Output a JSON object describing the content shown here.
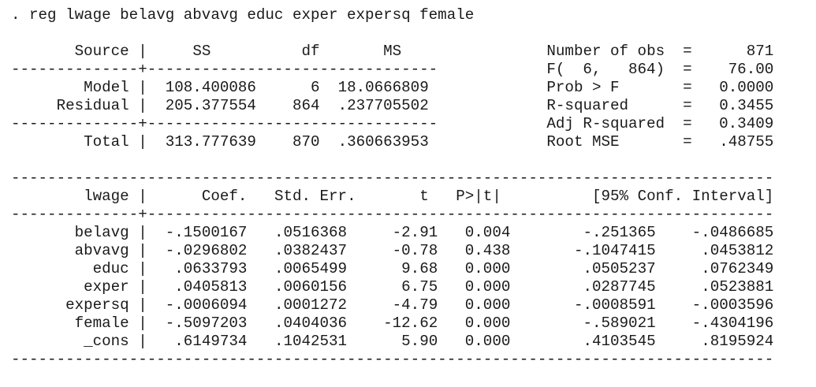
{
  "command": ". reg lwage belavg abvavg educ exper expersq female",
  "anova": {
    "headers": {
      "source": "Source",
      "ss": "SS",
      "df": "df",
      "ms": "MS"
    },
    "rows": [
      {
        "source": "Model",
        "ss": "108.400086",
        "df": "6",
        "ms": "18.0666809"
      },
      {
        "source": "Residual",
        "ss": "205.377554",
        "df": "864",
        "ms": ".237705502"
      },
      {
        "source": "Total",
        "ss": "313.777639",
        "df": "870",
        "ms": ".360663953"
      }
    ]
  },
  "stats": [
    {
      "label": "Number of obs",
      "value": "871"
    },
    {
      "label": "F(  6,   864)",
      "value": "76.00"
    },
    {
      "label": "Prob > F",
      "value": "0.0000"
    },
    {
      "label": "R-squared",
      "value": "0.3455"
    },
    {
      "label": "Adj R-squared",
      "value": "0.3409"
    },
    {
      "label": "Root MSE",
      "value": ".48755"
    }
  ],
  "coef_table": {
    "headers": {
      "var": "lwage",
      "coef": "Coef.",
      "se": "Std. Err.",
      "t": "t",
      "p": "P>|t|",
      "ci": "[95% Conf. Interval]"
    },
    "rows": [
      {
        "var": "belavg",
        "coef": "-.1500167",
        "se": ".0516368",
        "t": "-2.91",
        "p": "0.004",
        "lo": "-.251365",
        "hi": "-.0486685"
      },
      {
        "var": "abvavg",
        "coef": "-.0296802",
        "se": ".0382437",
        "t": "-0.78",
        "p": "0.438",
        "lo": "-.1047415",
        "hi": ".0453812"
      },
      {
        "var": "educ",
        "coef": ".0633793",
        "se": ".0065499",
        "t": "9.68",
        "p": "0.000",
        "lo": ".0505237",
        "hi": ".0762349"
      },
      {
        "var": "exper",
        "coef": ".0405813",
        "se": ".0060156",
        "t": "6.75",
        "p": "0.000",
        "lo": ".0287745",
        "hi": ".0523881"
      },
      {
        "var": "expersq",
        "coef": "-.0006094",
        "se": ".0001272",
        "t": "-4.79",
        "p": "0.000",
        "lo": "-.0008591",
        "hi": "-.0003596"
      },
      {
        "var": "female",
        "coef": "-.5097203",
        "se": ".0404036",
        "t": "-12.62",
        "p": "0.000",
        "lo": "-.589021",
        "hi": "-.4304196"
      },
      {
        "var": "_cons",
        "coef": ".6149734",
        "se": ".1042531",
        "t": "5.90",
        "p": "0.000",
        "lo": ".4103545",
        "hi": ".8195924"
      }
    ]
  }
}
